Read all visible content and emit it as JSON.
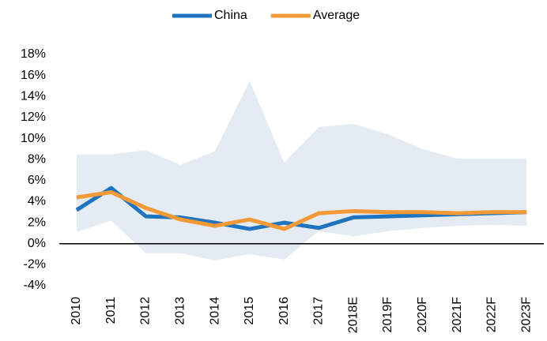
{
  "chart_data": {
    "type": "line",
    "categories": [
      "2010",
      "2011",
      "2012",
      "2013",
      "2014",
      "2015",
      "2016",
      "2017",
      "2018E",
      "2019F",
      "2020F",
      "2021F",
      "2022F",
      "2023F"
    ],
    "band": {
      "color": "#e4ebf3",
      "upper": [
        8.5,
        8.5,
        8.9,
        7.5,
        8.8,
        15.5,
        7.7,
        11.1,
        11.4,
        10.4,
        9.0,
        8.1,
        8.1,
        8.1
      ],
      "lower": [
        1.1,
        2.2,
        -0.9,
        -0.9,
        -1.6,
        -1.0,
        -1.5,
        1.2,
        0.7,
        1.2,
        1.5,
        1.7,
        1.8,
        1.7
      ]
    },
    "series": [
      {
        "name": "China",
        "color": "#1f74bf",
        "values": [
          3.2,
          5.3,
          2.6,
          2.5,
          2.0,
          1.4,
          2.0,
          1.5,
          2.5,
          2.6,
          2.7,
          2.8,
          2.9,
          3.0
        ]
      },
      {
        "name": "Average",
        "color": "#f39a36",
        "values": [
          4.4,
          4.9,
          3.4,
          2.3,
          1.7,
          2.3,
          1.4,
          2.9,
          3.1,
          3.0,
          3.0,
          2.9,
          3.0,
          3.0
        ]
      }
    ],
    "ylim": [
      -4,
      18
    ],
    "yticks": [
      {
        "value": -4,
        "label": "-4%"
      },
      {
        "value": -2,
        "label": "-2%"
      },
      {
        "value": 0,
        "label": "0%"
      },
      {
        "value": 2,
        "label": "2%"
      },
      {
        "value": 4,
        "label": "4%"
      },
      {
        "value": 6,
        "label": "6%"
      },
      {
        "value": 8,
        "label": "8%"
      },
      {
        "value": 10,
        "label": "10%"
      },
      {
        "value": 12,
        "label": "12%"
      },
      {
        "value": 14,
        "label": "14%"
      },
      {
        "value": 16,
        "label": "16%"
      },
      {
        "value": 18,
        "label": "18%"
      }
    ],
    "grid": false,
    "legend": "top"
  }
}
